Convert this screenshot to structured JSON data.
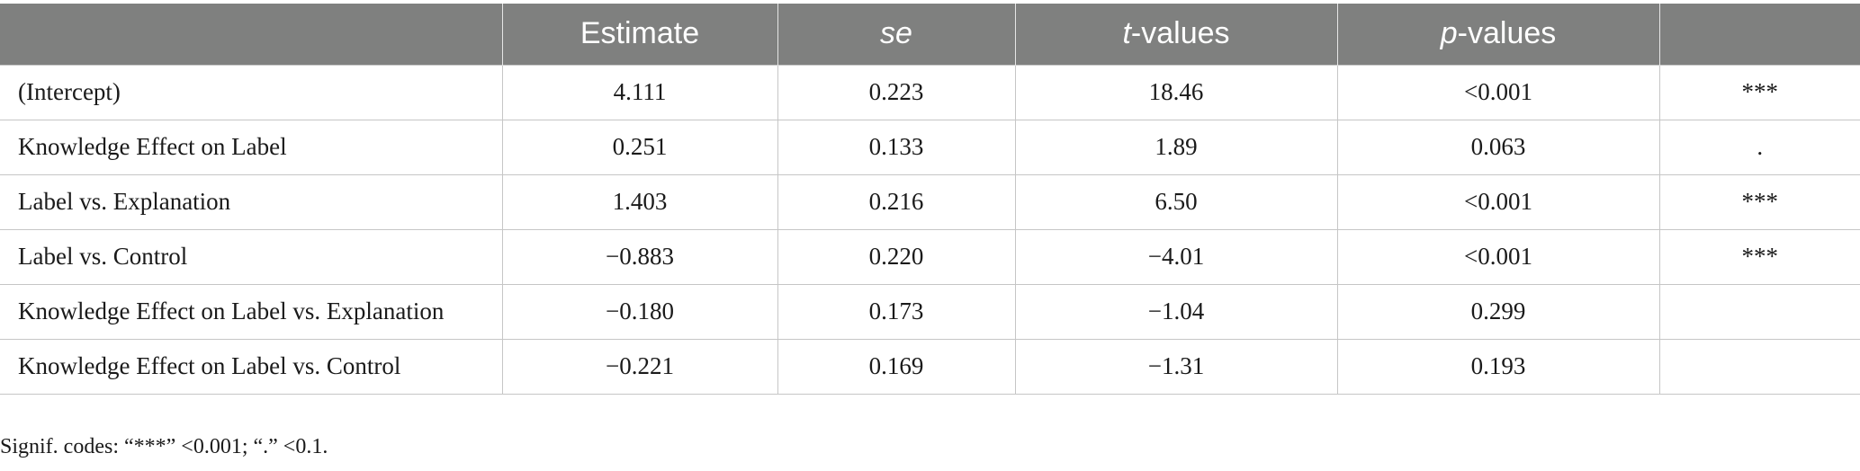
{
  "table": {
    "headers": {
      "label": "",
      "estimate": "Estimate",
      "se": "se",
      "t_italic": "t",
      "t_rest": "-values",
      "p_italic": "p",
      "p_rest": "-values",
      "sig": ""
    },
    "rows": [
      {
        "label": "(Intercept)",
        "estimate": "4.111",
        "se": "0.223",
        "t": "18.46",
        "p": "<0.001",
        "sig": "***"
      },
      {
        "label": "Knowledge Effect on Label",
        "estimate": "0.251",
        "se": "0.133",
        "t": "1.89",
        "p": "0.063",
        "sig": "."
      },
      {
        "label": "Label vs. Explanation",
        "estimate": "1.403",
        "se": "0.216",
        "t": "6.50",
        "p": "<0.001",
        "sig": "***"
      },
      {
        "label": "Label vs. Control",
        "estimate": "−0.883",
        "se": "0.220",
        "t": "−4.01",
        "p": "<0.001",
        "sig": "***"
      },
      {
        "label": "Knowledge Effect on Label vs. Explanation",
        "estimate": "−0.180",
        "se": "0.173",
        "t": "−1.04",
        "p": "0.299",
        "sig": ""
      },
      {
        "label": "Knowledge Effect on Label vs. Control",
        "estimate": "−0.221",
        "se": "0.169",
        "t": "−1.31",
        "p": "0.193",
        "sig": ""
      }
    ]
  },
  "footnote": "Signif. codes: “***” <0.001; “.” <0.1."
}
